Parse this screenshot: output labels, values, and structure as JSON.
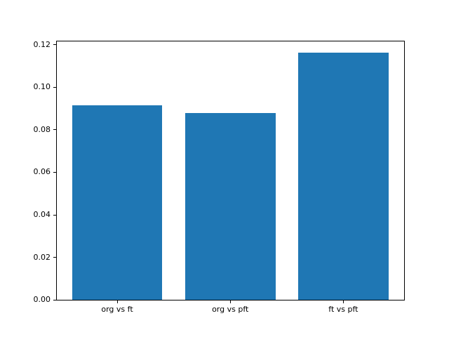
{
  "chart_data": {
    "type": "bar",
    "categories": [
      "org vs ft",
      "org vs pft",
      "ft vs pft"
    ],
    "values": [
      0.0916,
      0.0878,
      0.1162
    ],
    "title": "",
    "xlabel": "",
    "ylabel": "",
    "ylim": [
      0,
      0.122
    ],
    "xlim": [
      -0.54,
      2.54
    ],
    "yticks": [
      0.0,
      0.02,
      0.04,
      0.06,
      0.08,
      0.1,
      0.12
    ],
    "ytick_decimals": 2,
    "bar_width_units": 0.8,
    "bar_color": "#1f77b4",
    "axis_color": "#000000",
    "background_color": "#ffffff",
    "grid": false,
    "legend_position": "none"
  }
}
